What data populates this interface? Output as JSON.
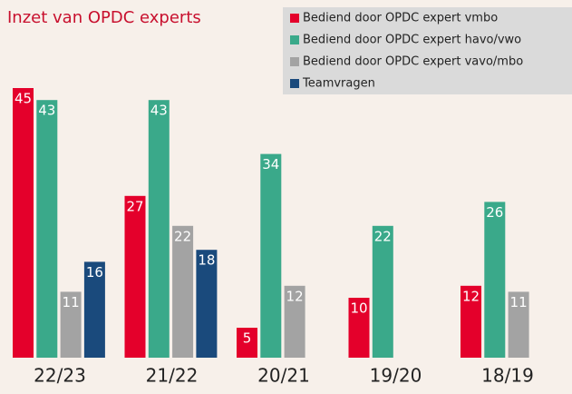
{
  "chart_data": {
    "type": "bar",
    "title": "Inzet van OPDC experts",
    "categories": [
      "22/23",
      "21/22",
      "20/21",
      "19/20",
      "18/19"
    ],
    "series": [
      {
        "name": "Bediend door OPDC expert vmbo",
        "color": "#e4002b",
        "values": [
          45,
          27,
          5,
          10,
          12
        ]
      },
      {
        "name": "Bediend door OPDC expert havo/vwo",
        "color": "#3aa98a",
        "values": [
          43,
          43,
          34,
          22,
          26
        ]
      },
      {
        "name": "Bediend door OPDC expert vavo/mbo",
        "color": "#a3a3a3",
        "values": [
          11,
          22,
          12,
          null,
          11
        ]
      },
      {
        "name": "Teamvragen",
        "color": "#1a4a7c",
        "values": [
          16,
          18,
          null,
          null,
          null
        ]
      }
    ],
    "legend": "upper right"
  }
}
